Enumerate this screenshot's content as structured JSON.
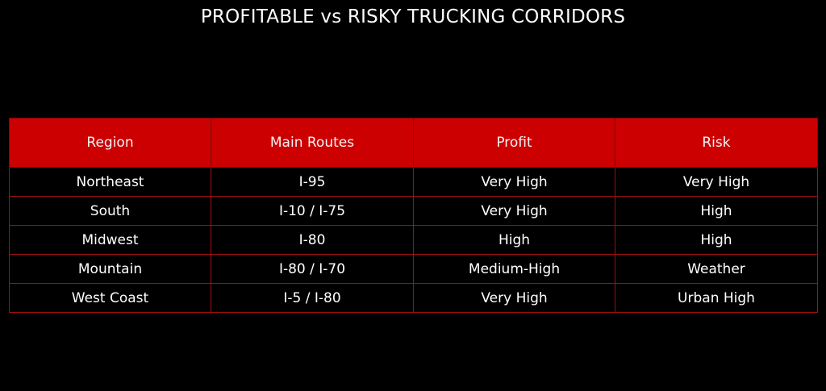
{
  "chart_data": {
    "type": "table",
    "title": "PROFITABLE vs RISKY TRUCKING CORRIDORS",
    "columns": [
      "Region",
      "Main Routes",
      "Profit",
      "Risk"
    ],
    "rows": [
      [
        "Northeast",
        "I-95",
        "Very High",
        "Very High"
      ],
      [
        "South",
        "I-10 / I-75",
        "Very High",
        "High"
      ],
      [
        "Midwest",
        "I-80",
        "High",
        "High"
      ],
      [
        "Mountain",
        "I-80 / I-70",
        "Medium-High",
        "Weather"
      ],
      [
        "West Coast",
        "I-5 / I-80",
        "Very High",
        "Urban High"
      ]
    ]
  },
  "colors": {
    "background": "#000000",
    "header_fill": "#cc0000",
    "border": "#9e1111",
    "text": "#ffffff"
  }
}
